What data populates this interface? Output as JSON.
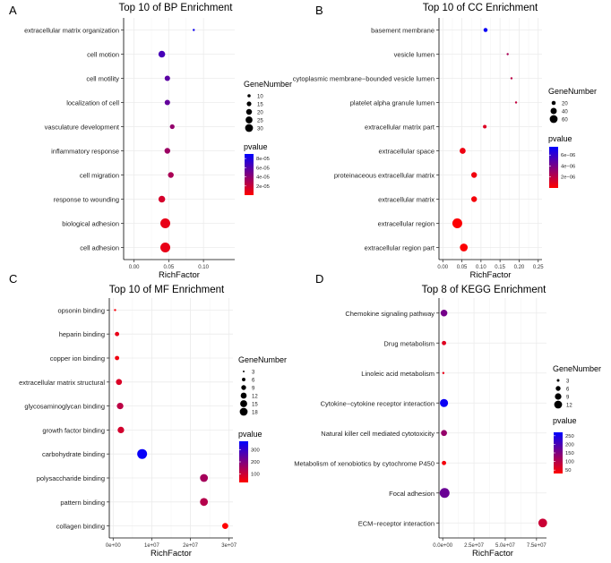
{
  "panel_letters": [
    "A",
    "B",
    "C",
    "D"
  ],
  "color_scale": {
    "low": "#ff0000",
    "high": "#0000ff"
  },
  "chart_data": [
    {
      "type": "scatter",
      "title": "Top 10 of BP Enrichment",
      "xlabel": "RichFactor",
      "ylabel": "",
      "xlim": [
        -0.015,
        0.145
      ],
      "xticks": [
        0.0,
        0.05,
        0.1
      ],
      "xtick_labels": [
        "0.00",
        "0.05",
        "0.10"
      ],
      "categories": [
        "extracellular matrix organization",
        "cell motion",
        "cell motility",
        "localization of cell",
        "vasculature development",
        "inflammatory response",
        "cell migration",
        "response to wounding",
        "biological adhesion",
        "cell adhesion"
      ],
      "x": [
        0.086,
        0.04,
        0.048,
        0.048,
        0.055,
        0.048,
        0.053,
        0.04,
        0.045,
        0.045
      ],
      "gene_number": [
        6,
        18,
        14,
        14,
        12,
        15,
        15,
        18,
        30,
        30
      ],
      "pvalue": [
        8.5e-05,
        6.5e-05,
        5.8e-05,
        5.5e-05,
        3.8e-05,
        3.5e-05,
        3e-05,
        1.5e-05,
        8e-06,
        8e-06
      ],
      "size_legend": {
        "title": "GeneNumber",
        "values": [
          10,
          15,
          20,
          25,
          30
        ],
        "labels": [
          "10",
          "15",
          "20",
          "25",
          "30"
        ]
      },
      "color_legend": {
        "title": "pvalue",
        "min": 0,
        "max": 9e-05,
        "ticks": [
          8e-05,
          6e-05,
          4e-05,
          2e-05
        ],
        "labels": [
          "8e-05",
          "6e-05",
          "4e-05",
          "2e-05"
        ]
      }
    },
    {
      "type": "scatter",
      "title": "Top 10 of CC Enrichment",
      "xlabel": "RichFactor",
      "ylabel": "",
      "xlim": [
        -0.01,
        0.26
      ],
      "xticks": [
        0.0,
        0.05,
        0.1,
        0.15,
        0.2,
        0.25
      ],
      "xtick_labels": [
        "0.00",
        "0.05",
        "0.10",
        "0.15",
        "0.20",
        "0.25"
      ],
      "categories": [
        "basement membrane",
        "vesicle lumen",
        "cytoplasmic membrane−bounded vesicle lumen",
        "platelet alpha granule lumen",
        "extracellular matrix part",
        "extracellular space",
        "proteinaceous extracellular matrix",
        "extracellular matrix",
        "extracellular region",
        "extracellular region part"
      ],
      "x": [
        0.112,
        0.17,
        0.18,
        0.192,
        0.11,
        0.052,
        0.082,
        0.082,
        0.038,
        0.055
      ],
      "gene_number": [
        14,
        6,
        6,
        6,
        12,
        26,
        24,
        24,
        60,
        40
      ],
      "pvalue": [
        7.2e-06,
        2.5e-06,
        2e-06,
        1.8e-06,
        1e-06,
        5e-07,
        4e-07,
        3e-07,
        1e-07,
        1e-07
      ],
      "size_legend": {
        "title": "GeneNumber",
        "values": [
          20,
          40,
          60
        ],
        "labels": [
          "20",
          "40",
          "60"
        ]
      },
      "color_legend": {
        "title": "pvalue",
        "min": 0,
        "max": 7.5e-06,
        "ticks": [
          6e-06,
          4e-06,
          2e-06
        ],
        "labels": [
          "6e−06",
          "4e−06",
          "2e−06"
        ]
      }
    },
    {
      "type": "scatter",
      "title": "Top 10 of MF Enrichment",
      "xlabel": "RichFactor",
      "ylabel": "",
      "xlim": [
        -1000000.0,
        31000000.0
      ],
      "xticks": [
        0,
        10000000.0,
        20000000.0,
        30000000.0
      ],
      "xtick_labels": [
        "0e+00",
        "1e+07",
        "2e+07",
        "3e+07"
      ],
      "categories": [
        "opsonin binding",
        "heparin binding",
        "copper ion binding",
        "extracellular matrix structural",
        "glycosaminoglycan binding",
        "growth factor binding",
        "carbohydrate binding",
        "polysaccharide binding",
        "pattern binding",
        "collagen binding"
      ],
      "x": [
        500000.0,
        1000000.0,
        1000000.0,
        1500000.0,
        1800000.0,
        2000000.0,
        7500000.0,
        23500000.0,
        23500000.0,
        29000000.0
      ],
      "gene_number": [
        3,
        6,
        6,
        9,
        10,
        10,
        18,
        13,
        13,
        9
      ],
      "pvalue": [
        40,
        60,
        50,
        80,
        120,
        90,
        360,
        150,
        130,
        30
      ],
      "size_legend": {
        "title": "GeneNumber",
        "values": [
          3,
          6,
          9,
          12,
          15,
          18
        ],
        "labels": [
          "3",
          "6",
          "9",
          "12",
          "15",
          "18"
        ]
      },
      "color_legend": {
        "title": "pvalue",
        "min": 30,
        "max": 370,
        "ticks": [
          300,
          200,
          100
        ],
        "labels": [
          "300",
          "200",
          "100"
        ]
      }
    },
    {
      "type": "scatter",
      "title": "Top 8 of KEGG Enrichment",
      "xlabel": "RichFactor",
      "ylabel": "",
      "xlim": [
        -3000000.0,
        83000000.0
      ],
      "xticks": [
        0,
        25000000.0,
        50000000.0,
        75000000.0
      ],
      "xtick_labels": [
        "0.0e+00",
        "2.5e+07",
        "5.0e+07",
        "7.5e+07"
      ],
      "categories": [
        "Chemokine signaling pathway",
        "Drug metabolism",
        "Linoleic acid metabolism",
        "Cytokine−cytokine receptor interaction",
        "Natural killer cell mediated cytotoxicity",
        "Metabolism of xenobiotics by cytochrome P450",
        "Focal adhesion",
        "ECM−receptor interaction"
      ],
      "x": [
        1000000.0,
        1000000.0,
        500000.0,
        1000000.0,
        1000000.0,
        1000000.0,
        1500000.0,
        80000000.0
      ],
      "gene_number": [
        7,
        4,
        2,
        9,
        6,
        4,
        12,
        10
      ],
      "pvalue": [
        160,
        60,
        50,
        260,
        130,
        40,
        170,
        80
      ],
      "size_legend": {
        "title": "GeneNumber",
        "values": [
          3,
          6,
          9,
          12
        ],
        "labels": [
          "3",
          "6",
          "9",
          "12"
        ]
      },
      "color_legend": {
        "title": "pvalue",
        "min": 30,
        "max": 270,
        "ticks": [
          250,
          200,
          150,
          100,
          50
        ],
        "labels": [
          "250",
          "200",
          "150",
          "100",
          "50"
        ]
      }
    }
  ]
}
